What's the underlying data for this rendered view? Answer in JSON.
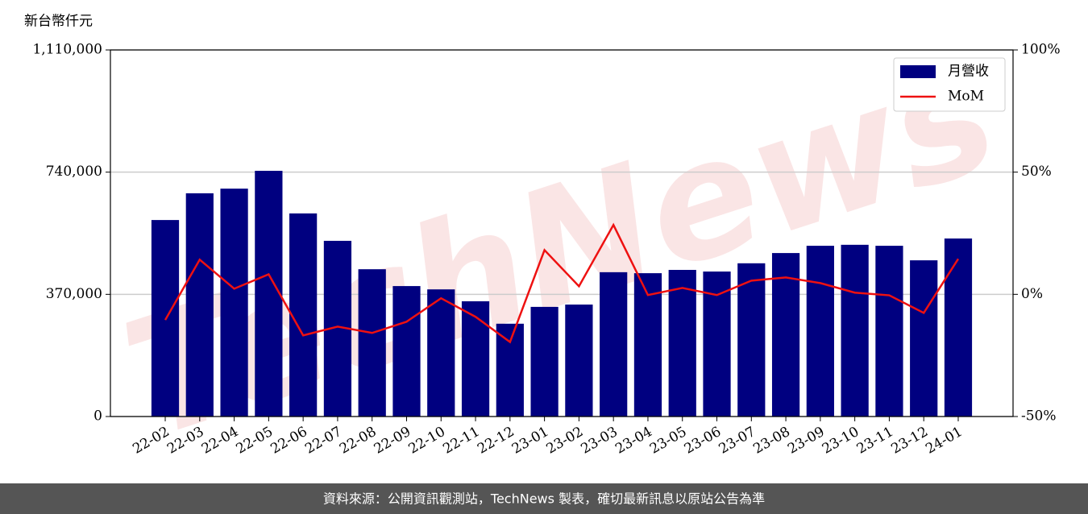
{
  "chart_data": {
    "type": "bar_line",
    "ylabel": "新台幣仟元",
    "watermark": "TechNews",
    "source": "資料來源：公開資訊觀測站，TechNews 製表，確切最新訊息以原站公告為準",
    "categories": [
      "22-02",
      "22-03",
      "22-04",
      "22-05",
      "22-06",
      "22-07",
      "22-08",
      "22-09",
      "22-10",
      "22-11",
      "22-12",
      "23-01",
      "23-02",
      "23-03",
      "23-04",
      "23-05",
      "23-06",
      "23-07",
      "23-08",
      "23-09",
      "23-10",
      "23-11",
      "23-12",
      "24-01"
    ],
    "series": [
      {
        "name": "月營收",
        "type": "bar",
        "color": "#000080",
        "values": [
          595000,
          676000,
          690000,
          744000,
          615000,
          532000,
          446000,
          395000,
          385000,
          349000,
          281000,
          332000,
          339000,
          437000,
          434000,
          444000,
          439000,
          464000,
          495000,
          517000,
          520000,
          517000,
          473000,
          539000
        ]
      },
      {
        "name": "MoM",
        "type": "line",
        "axis": "y2",
        "color": "#ee1111",
        "values": [
          -10.5,
          14.2,
          2.3,
          8.2,
          -16.8,
          -13.2,
          -15.8,
          -11.2,
          -1.6,
          -9.2,
          -19.5,
          18.1,
          3.3,
          28.4,
          -0.3,
          2.6,
          -0.3,
          5.6,
          6.9,
          4.6,
          0.7,
          -0.4,
          -7.6,
          14.5
        ]
      }
    ],
    "ylim": [
      0,
      1110000
    ],
    "yticks": [
      0,
      {
        "value": 370000,
        "label": "370,000"
      },
      {
        "value": 740000,
        "label": "740,000"
      },
      {
        "value": 1110000,
        "label": "1,110,000"
      }
    ],
    "y2lim": [
      -50,
      100
    ],
    "y2ticks": [
      {
        "value": -50,
        "label": "-50%"
      },
      {
        "value": 0,
        "label": "0%"
      },
      {
        "value": 50,
        "label": "50%"
      },
      {
        "value": 100,
        "label": "100%"
      }
    ],
    "grid": true,
    "legend": "upper right"
  }
}
